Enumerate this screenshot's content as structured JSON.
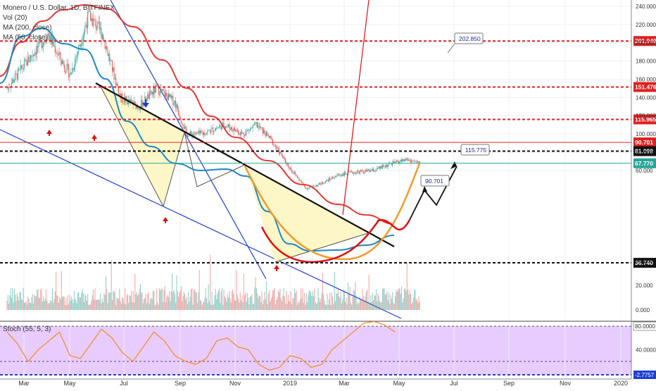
{
  "chart_data": {
    "type": "line",
    "title": "Monero / U.S. Dollar, 1D, BITFINEX",
    "indicators": [
      "Vol (20)",
      "MA (200, close)",
      "MA (50, close)"
    ],
    "oscillator_label": "Stoch (55, 5, 3)",
    "x_ticks": [
      "Mar",
      "May",
      "Jul",
      "Sep",
      "Nov",
      "2019",
      "Mar",
      "May",
      "Jul",
      "Sep",
      "Nov",
      "2020"
    ],
    "price_axis_ticks": [
      240.0,
      220.0,
      200.0,
      180.0,
      160.0,
      140.0,
      120.0,
      100.0,
      80.0,
      60.0
    ],
    "volume_axis_ticks": [
      40.0,
      20.0,
      0.0
    ],
    "stoch_axis_ticks": [
      80.0,
      40.0
    ],
    "horizontal_levels": [
      {
        "label": "201.946",
        "value": 201.946,
        "color": "#e02020",
        "style": "dashed"
      },
      {
        "label": "151.476",
        "value": 151.476,
        "color": "#e02020",
        "style": "dashed"
      },
      {
        "label": "115.965",
        "value": 115.965,
        "color": "#e02020",
        "style": "dashed"
      },
      {
        "label": "90.701",
        "value": 90.701,
        "color": "#e02020",
        "style": "solid"
      },
      {
        "label": "81.098",
        "value": 81.098,
        "color": "#111111",
        "style": "dashed"
      },
      {
        "label": "67.770",
        "value": 67.77,
        "color": "#26a69a",
        "style": "solid"
      },
      {
        "label": "36.740",
        "value": 36.74,
        "color": "#111111",
        "style": "dashed"
      }
    ],
    "annotations": [
      {
        "text": "202.850"
      },
      {
        "text": "115.775"
      },
      {
        "text": "90.701"
      }
    ],
    "stoch_band_values": [
      "80.0000",
      "-2.7757"
    ],
    "colors": {
      "ma200": "#e53935",
      "ma50": "#1e88c8",
      "candle_up": "#26a69a",
      "candle_down": "#ef5350",
      "stoch_fill": "#e8ccff",
      "stoch_line": "#f08a24",
      "trend_black": "#111111",
      "trend_blue": "#1f3fd1",
      "wedge_fill": "#fdf7c8",
      "orange_arc": "#f39a2d",
      "red_cup": "#e01010"
    }
  }
}
